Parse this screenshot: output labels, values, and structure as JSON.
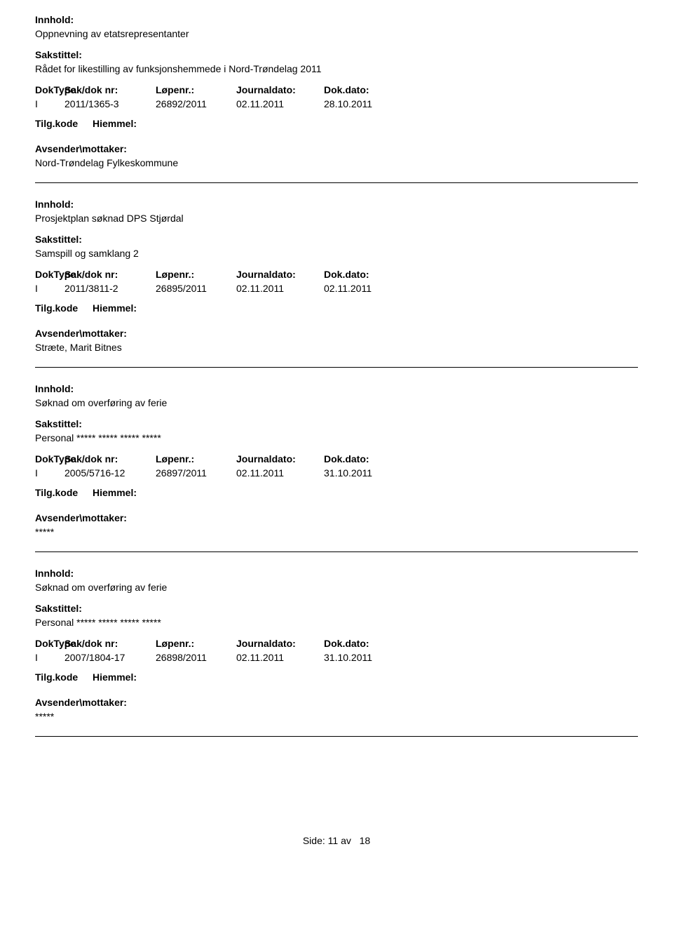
{
  "labels": {
    "innhold": "Innhold:",
    "sakstittel": "Sakstittel:",
    "doktype": "DokType",
    "saknr": "Sak/dok nr:",
    "lopenr": "Løpenr.:",
    "journaldato": "Journaldato:",
    "dokdato": "Dok.dato:",
    "tilgkode": "Tilg.kode",
    "hiemmel": "Hiemmel:",
    "mottaker": "Avsender\\mottaker:"
  },
  "entries": [
    {
      "innhold": "Oppnevning av etatsrepresentanter",
      "sakstittel": "Rådet for likestilling av funksjonshemmede i Nord-Trøndelag 2011",
      "doktype": "I",
      "saknr": "2011/1365-3",
      "lopenr": "26892/2011",
      "journaldato": "02.11.2011",
      "dokdato": "28.10.2011",
      "mottaker": "Nord-Trøndelag Fylkeskommune"
    },
    {
      "innhold": "Prosjektplan søknad DPS Stjørdal",
      "sakstittel": "Samspill og samklang 2",
      "doktype": "I",
      "saknr": "2011/3811-2",
      "lopenr": "26895/2011",
      "journaldato": "02.11.2011",
      "dokdato": "02.11.2011",
      "mottaker": "Stræte, Marit Bitnes"
    },
    {
      "innhold": "Søknad om overføring av ferie",
      "sakstittel": "Personal  ***** ***** ***** *****",
      "doktype": "I",
      "saknr": "2005/5716-12",
      "lopenr": "26897/2011",
      "journaldato": "02.11.2011",
      "dokdato": "31.10.2011",
      "mottaker": "*****"
    },
    {
      "innhold": "Søknad om overføring av ferie",
      "sakstittel": "Personal  ***** ***** ***** *****",
      "doktype": "I",
      "saknr": "2007/1804-17",
      "lopenr": "26898/2011",
      "journaldato": "02.11.2011",
      "dokdato": "31.10.2011",
      "mottaker": "*****"
    }
  ],
  "footer": {
    "side_label": "Side:",
    "page": "11",
    "av": "av",
    "total": "18"
  }
}
